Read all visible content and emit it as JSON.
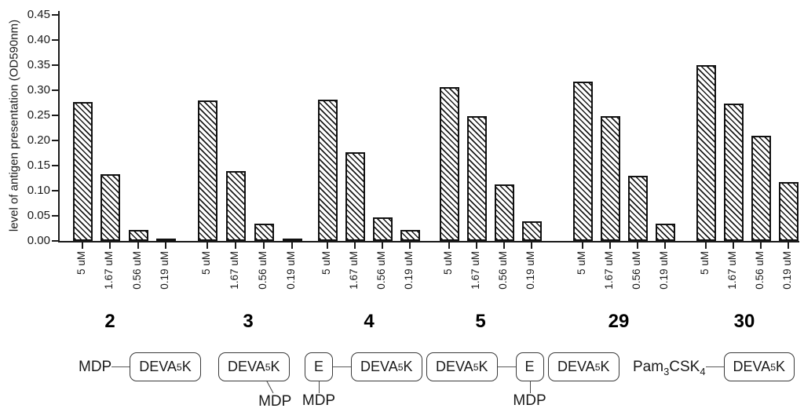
{
  "chart_data": {
    "type": "bar",
    "title": "",
    "xlabel": "",
    "ylabel": "level of antigen presentation (OD590nm)",
    "ylim": [
      0,
      0.45
    ],
    "ytick_step": 0.05,
    "ytick_labels": [
      "0.00",
      "0.05",
      "0.10",
      "0.15",
      "0.20",
      "0.25",
      "0.30",
      "0.35",
      "0.40",
      "0.45"
    ],
    "grid": false,
    "legend": null,
    "bar_style": {
      "fill": "#ffffff",
      "stroke": "#111111",
      "hatch": "diagonal-backslash"
    },
    "concentrations": [
      "5 uM",
      "1.67 uM",
      "0.56 uM",
      "0.19 uM"
    ],
    "groups": [
      {
        "label": "2",
        "values": [
          0.277,
          0.133,
          0.022,
          0.005
        ]
      },
      {
        "label": "3",
        "values": [
          0.279,
          0.139,
          0.035,
          0.005
        ]
      },
      {
        "label": "4",
        "values": [
          0.282,
          0.176,
          0.047,
          0.022
        ]
      },
      {
        "label": "5",
        "values": [
          0.306,
          0.248,
          0.113,
          0.039
        ]
      },
      {
        "label": "29",
        "values": [
          0.317,
          0.249,
          0.13,
          0.034
        ]
      },
      {
        "label": "30",
        "values": [
          0.35,
          0.274,
          0.209,
          0.117
        ]
      }
    ]
  },
  "structures": [
    {
      "group": "2",
      "parts": [
        {
          "kind": "text",
          "segments": [
            {
              "t": "MDP"
            }
          ]
        },
        {
          "kind": "bond"
        },
        {
          "kind": "box",
          "segments": [
            {
              "t": "DEVA"
            },
            {
              "t": "5",
              "sub": true
            },
            {
              "t": "K"
            }
          ]
        }
      ]
    },
    {
      "group": "3",
      "parts": [
        {
          "kind": "box",
          "segments": [
            {
              "t": "DEVA"
            },
            {
              "t": "5",
              "sub": true
            },
            {
              "t": "K"
            }
          ],
          "pendant": {
            "label": "MDP",
            "side": "bottom-right"
          }
        }
      ]
    },
    {
      "group": "4",
      "parts": [
        {
          "kind": "box",
          "segments": [
            {
              "t": "E"
            }
          ],
          "pendant": {
            "label": "MDP",
            "side": "bottom"
          }
        },
        {
          "kind": "bond"
        },
        {
          "kind": "box",
          "segments": [
            {
              "t": "DEVA"
            },
            {
              "t": "5",
              "sub": true
            },
            {
              "t": "K"
            }
          ]
        }
      ]
    },
    {
      "group": "5",
      "parts": [
        {
          "kind": "box",
          "segments": [
            {
              "t": "DEVA"
            },
            {
              "t": "5",
              "sub": true
            },
            {
              "t": "K"
            }
          ]
        },
        {
          "kind": "bond"
        },
        {
          "kind": "box",
          "segments": [
            {
              "t": "E"
            }
          ],
          "pendant": {
            "label": "MDP",
            "side": "bottom"
          }
        }
      ]
    },
    {
      "group": "29",
      "parts": [
        {
          "kind": "box",
          "segments": [
            {
              "t": "DEVA"
            },
            {
              "t": "5",
              "sub": true
            },
            {
              "t": "K"
            }
          ]
        }
      ]
    },
    {
      "group": "30",
      "parts": [
        {
          "kind": "text",
          "segments": [
            {
              "t": "Pam"
            },
            {
              "t": "3",
              "sub": true
            },
            {
              "t": "CSK"
            },
            {
              "t": "4",
              "sub": true
            }
          ]
        },
        {
          "kind": "bond"
        },
        {
          "kind": "box",
          "segments": [
            {
              "t": "DEVA"
            },
            {
              "t": "5",
              "sub": true
            },
            {
              "t": "K"
            }
          ]
        }
      ]
    }
  ]
}
